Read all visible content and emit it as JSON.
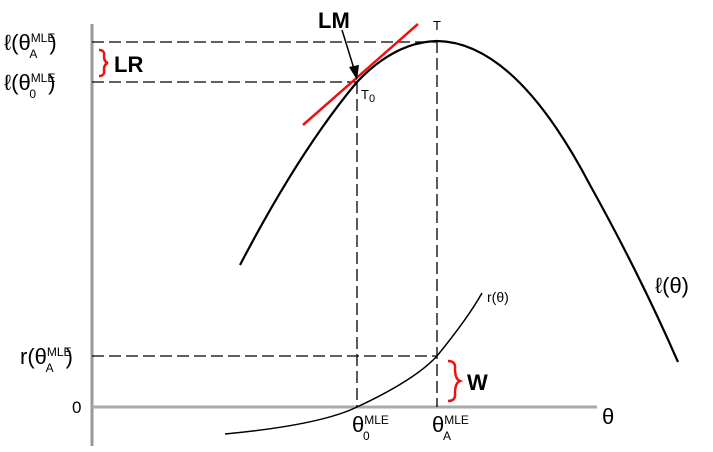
{
  "labels": {
    "l_theta_a": {
      "main": "ℓ(θ",
      "sub": "A",
      "sup": "MLE",
      "close": ")"
    },
    "l_theta_0": {
      "main": "ℓ(θ",
      "sub": "0",
      "sup": "MLE",
      "close": ")"
    },
    "r_theta_a": {
      "main": "r(θ",
      "sub": "A",
      "sup": "MLE",
      "close": ")"
    },
    "zero": "0",
    "theta_0": {
      "main": "θ",
      "sub": "0",
      "sup": "MLE"
    },
    "theta_a": {
      "main": "θ",
      "sub": "A",
      "sup": "MLE"
    },
    "theta_axis": "θ",
    "lm": "LM",
    "lr": "LR",
    "w": "W",
    "t": "T",
    "t0": {
      "main": "T",
      "sub": "0"
    },
    "l_curve": "ℓ(θ)",
    "r_curve": "r(θ)"
  },
  "colors": {
    "axis": "#999999",
    "curve": "#000000",
    "highlight": "#ee1111"
  }
}
